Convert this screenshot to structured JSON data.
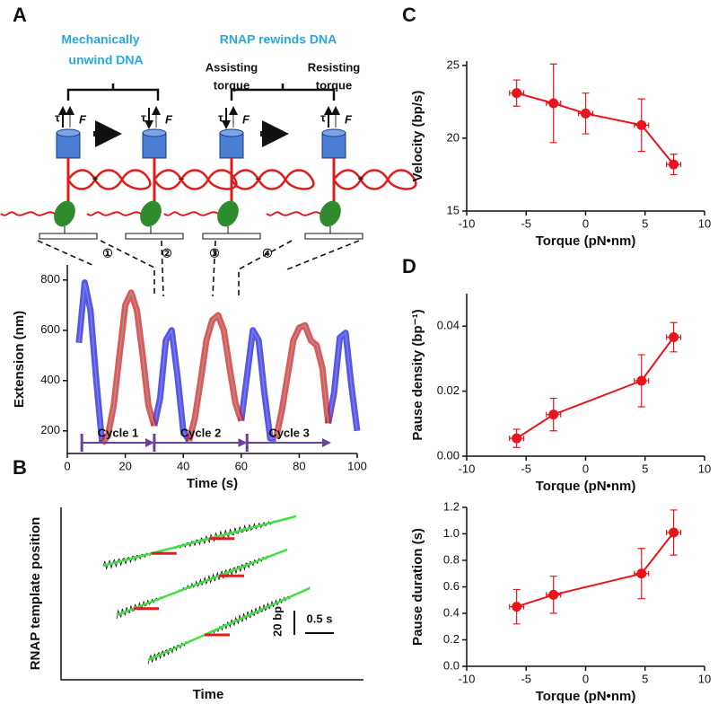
{
  "panels": [
    "A",
    "B",
    "C",
    "D"
  ],
  "diagram": {
    "left_heading": [
      "Mechanically",
      "unwind DNA"
    ],
    "right_heading": "RNAP rewinds DNA",
    "assisting": [
      "Assisting",
      "torque"
    ],
    "resisting": [
      "Resisting",
      "torque"
    ],
    "tau": "τ",
    "force": "F",
    "steps": [
      "①",
      "②",
      "③",
      "④"
    ]
  },
  "panel_b": {
    "y_label": "RNAP template position",
    "x_label": "Time",
    "scale_y": "20 bp",
    "scale_x": "0.5 s"
  },
  "chart_data": [
    {
      "type": "line",
      "xlabel": "Time (s)",
      "ylabel": "Extension (nm)",
      "xlim": [
        0,
        100
      ],
      "ylim": [
        110,
        860
      ],
      "xticks": [
        0,
        20,
        40,
        60,
        80,
        100
      ],
      "yticks": [
        200,
        400,
        600,
        800
      ],
      "x": [
        4,
        6,
        8,
        10,
        12,
        14,
        16,
        18,
        20,
        22,
        24,
        26,
        28,
        30,
        32,
        34,
        36,
        38,
        40,
        42,
        44,
        46,
        48,
        50,
        52,
        54,
        56,
        58,
        60,
        62,
        64,
        66,
        68,
        70,
        72,
        74,
        76,
        78,
        80,
        82,
        84,
        86,
        88,
        90,
        92,
        94,
        96,
        98,
        100
      ],
      "series": [
        {
          "color": "#1f1fd6",
          "values": [
            550,
            790,
            680,
            400,
            150,
            null,
            null,
            null,
            null,
            null,
            null,
            null,
            null,
            220,
            330,
            560,
            600,
            420,
            200,
            160,
            null,
            null,
            null,
            null,
            null,
            null,
            null,
            null,
            240,
            420,
            600,
            560,
            350,
            170,
            170,
            null,
            null,
            null,
            null,
            null,
            null,
            null,
            null,
            230,
            350,
            570,
            590,
            380,
            200
          ]
        },
        {
          "color": "#e01b1b",
          "values": [
            null,
            null,
            null,
            null,
            150,
            180,
            300,
            500,
            700,
            750,
            680,
            500,
            300,
            220,
            null,
            null,
            null,
            null,
            null,
            160,
            250,
            400,
            560,
            640,
            660,
            600,
            450,
            310,
            240,
            null,
            null,
            null,
            null,
            null,
            170,
            280,
            420,
            560,
            610,
            620,
            560,
            540,
            450,
            230,
            null,
            null,
            null,
            null,
            null
          ]
        }
      ],
      "cycles": [
        {
          "label": "Cycle 1",
          "start": 5,
          "end": 30
        },
        {
          "label": "Cycle 2",
          "start": 30,
          "end": 62
        },
        {
          "label": "Cycle 3",
          "start": 62,
          "end": 91
        }
      ]
    },
    {
      "type": "line",
      "xlabel": "Torque (pN•nm)",
      "ylabel": "Velocity (bp/s)",
      "xlim": [
        -10,
        10
      ],
      "ylim": [
        15,
        25.3
      ],
      "xticks": [
        -10,
        -5,
        0,
        5,
        10
      ],
      "yticks": [
        15,
        20,
        25
      ],
      "x": [
        -5.8,
        -2.7,
        0,
        4.7,
        7.4
      ],
      "series": [
        {
          "color": "#e8141b",
          "marker": "circle",
          "values": [
            23.1,
            22.4,
            21.7,
            20.9,
            18.2
          ],
          "yerr": [
            0.9,
            2.7,
            1.4,
            1.8,
            0.7
          ],
          "xerr": [
            0.6,
            0.6,
            0.6,
            0.6,
            0.6
          ]
        }
      ]
    },
    {
      "type": "line",
      "xlabel": "Torque (pN•nm)",
      "ylabel": "Pause density (bp⁻¹)",
      "xlim": [
        -10,
        10
      ],
      "ylim": [
        0,
        0.05
      ],
      "xticks": [
        -10,
        -5,
        0,
        5,
        10
      ],
      "yticks": [
        {
          "value": 0,
          "label": "0.00"
        },
        {
          "value": 0.02,
          "label": "0.02"
        },
        {
          "value": 0.04,
          "label": "0.04"
        }
      ],
      "x": [
        -5.8,
        -2.7,
        4.7,
        7.4
      ],
      "series": [
        {
          "color": "#e8141b",
          "marker": "circle",
          "values": [
            0.0055,
            0.0128,
            0.0232,
            0.0366
          ],
          "yerr": [
            0.0028,
            0.005,
            0.008,
            0.0045
          ],
          "xerr": [
            0.6,
            0.6,
            0.6,
            0.6
          ]
        }
      ]
    },
    {
      "type": "line",
      "xlabel": "Torque (pN•nm)",
      "ylabel": "Pause duration (s)",
      "xlim": [
        -10,
        10
      ],
      "ylim": [
        0,
        1.2
      ],
      "xticks": [
        -10,
        -5,
        0,
        5,
        10
      ],
      "yticks": [
        {
          "value": 0,
          "label": "0.0"
        },
        0.2,
        0.4,
        0.6,
        0.8,
        {
          "value": 1,
          "label": "1.0"
        },
        1.2
      ],
      "x": [
        -5.8,
        -2.7,
        4.7,
        7.4
      ],
      "series": [
        {
          "color": "#e8141b",
          "marker": "circle",
          "values": [
            0.45,
            0.54,
            0.7,
            1.01
          ],
          "yerr": [
            0.13,
            0.14,
            0.19,
            0.17
          ],
          "xerr": [
            0.6,
            0.6,
            0.6,
            0.6
          ]
        }
      ]
    }
  ]
}
